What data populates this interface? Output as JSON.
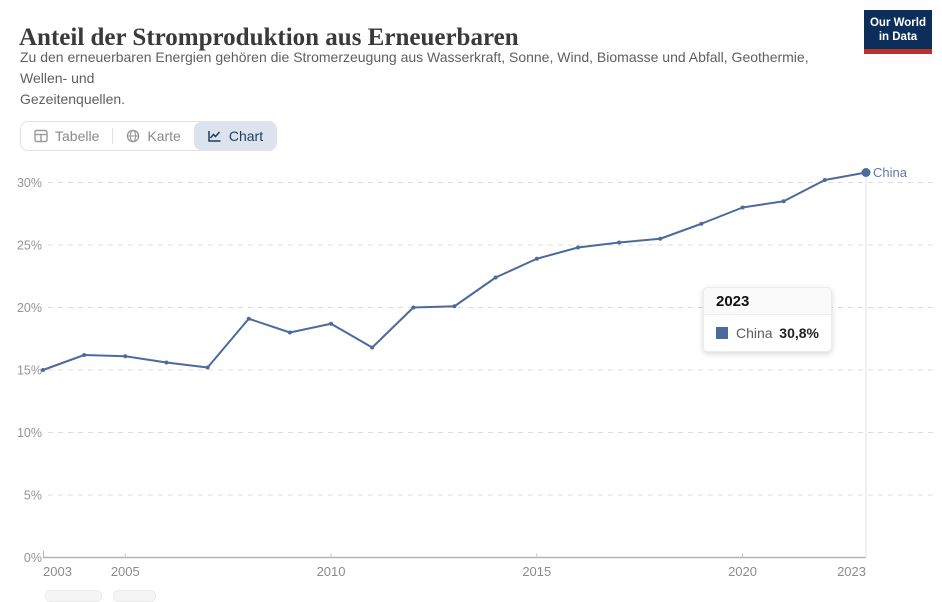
{
  "header": {
    "title": "Anteil der Stromproduktion aus Erneuerbaren",
    "subtitle_lines": [
      "Zu den erneuerbaren Energien gehören die Stromerzeugung aus Wasserkraft, Sonne, Wind, Biomasse und Abfall, Geothermie,",
      "Wellen- und",
      "Gezeitenquellen."
    ],
    "logo": {
      "line1": "Our World",
      "line2": "in Data",
      "bg_color": "#0d2e5b",
      "bar_color": "#b5352e"
    }
  },
  "tabs": [
    {
      "label": "Tabelle",
      "active": false
    },
    {
      "label": "Karte",
      "active": false
    },
    {
      "label": "Chart",
      "active": true
    }
  ],
  "tooltip": {
    "year": "2023",
    "series": "China",
    "value": "30,8%",
    "swatch_color": "#4C6A9C"
  },
  "chart_data": {
    "type": "line",
    "title": "Anteil der Stromproduktion aus Erneuerbaren",
    "xlim": [
      2003,
      2023
    ],
    "ylim": [
      0,
      32
    ],
    "grid": "horizontal-dashed",
    "legend_position": "end-of-line",
    "end_label": "China",
    "y_ticks": [
      0,
      5,
      10,
      15,
      20,
      25,
      30
    ],
    "y_tick_labels": [
      "0%",
      "5%",
      "10%",
      "15%",
      "20%",
      "25%",
      "30%"
    ],
    "x_ticks": [
      {
        "year": 2003,
        "label": "2003"
      },
      {
        "year": 2005,
        "label": "2005"
      },
      {
        "year": 2010,
        "label": "2010"
      },
      {
        "year": 2015,
        "label": "2015"
      },
      {
        "year": 2020,
        "label": "2020"
      },
      {
        "year": 2023,
        "label": "2023"
      }
    ],
    "series": [
      {
        "name": "China",
        "color": "#4C6A9C",
        "x": [
          2003,
          2004,
          2005,
          2006,
          2007,
          2008,
          2009,
          2010,
          2011,
          2012,
          2013,
          2014,
          2015,
          2016,
          2017,
          2018,
          2019,
          2020,
          2021,
          2022,
          2023
        ],
        "values": [
          15.0,
          16.2,
          16.1,
          15.6,
          15.2,
          19.1,
          18.0,
          18.7,
          16.8,
          20.0,
          20.1,
          22.4,
          23.9,
          24.8,
          25.2,
          25.5,
          26.7,
          28.0,
          28.5,
          30.2,
          30.8
        ]
      }
    ]
  }
}
